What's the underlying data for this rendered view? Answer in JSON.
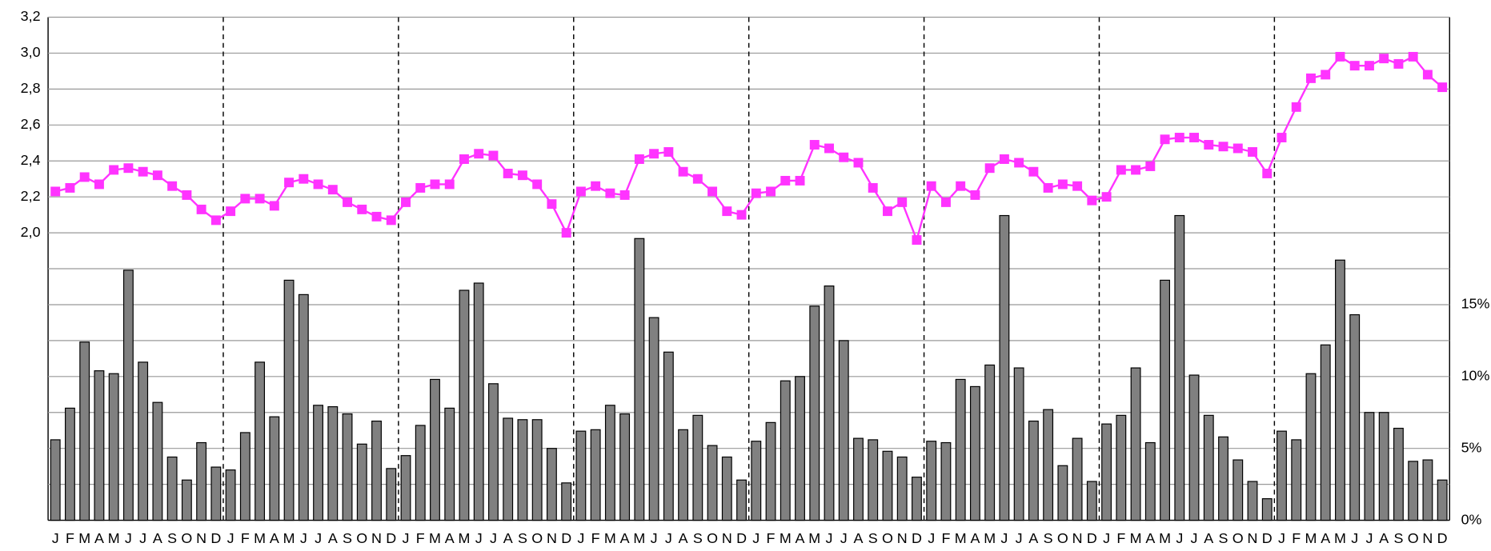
{
  "chart_data": {
    "type": "bar_line",
    "categories": [
      "J",
      "F",
      "M",
      "A",
      "M",
      "J",
      "J",
      "A",
      "S",
      "O",
      "N",
      "D",
      "J",
      "F",
      "M",
      "A",
      "M",
      "J",
      "J",
      "A",
      "S",
      "O",
      "N",
      "D",
      "J",
      "F",
      "M",
      "A",
      "M",
      "J",
      "J",
      "A",
      "S",
      "O",
      "N",
      "D",
      "J",
      "F",
      "M",
      "A",
      "M",
      "J",
      "J",
      "A",
      "S",
      "O",
      "N",
      "D",
      "J",
      "F",
      "M",
      "A",
      "M",
      "J",
      "J",
      "A",
      "S",
      "O",
      "N",
      "D",
      "J",
      "F",
      "M",
      "A",
      "M",
      "J",
      "J",
      "A",
      "S",
      "O",
      "N",
      "D",
      "J",
      "F",
      "M",
      "A",
      "M",
      "J",
      "J",
      "A",
      "S",
      "O",
      "N",
      "D",
      "J",
      "F",
      "M",
      "A",
      "M",
      "J",
      "J",
      "A",
      "S",
      "O",
      "N",
      "D"
    ],
    "series": [
      {
        "kind": "bar",
        "axis": "y2",
        "color": "#808080",
        "values": [
          5.6,
          7.8,
          12.4,
          10.4,
          10.2,
          17.4,
          11.0,
          8.2,
          4.4,
          2.8,
          5.4,
          3.7,
          3.5,
          6.1,
          11.0,
          7.2,
          16.7,
          15.7,
          8.0,
          7.9,
          7.4,
          5.3,
          6.9,
          3.6,
          4.5,
          6.6,
          9.8,
          7.8,
          16.0,
          16.5,
          9.5,
          7.1,
          7.0,
          7.0,
          5.0,
          2.6,
          6.2,
          6.3,
          8.0,
          7.4,
          19.6,
          14.1,
          11.7,
          6.3,
          7.3,
          5.2,
          4.4,
          2.8,
          5.5,
          6.8,
          9.7,
          10.0,
          14.9,
          16.3,
          12.5,
          5.7,
          5.6,
          4.8,
          4.4,
          3.0,
          5.5,
          5.4,
          9.8,
          9.3,
          10.8,
          21.2,
          10.6,
          6.9,
          7.7,
          3.8,
          5.7,
          2.7,
          6.7,
          7.3,
          10.6,
          5.4,
          16.7,
          21.2,
          10.1,
          7.3,
          5.8,
          4.2,
          2.7,
          1.5,
          6.2,
          5.6,
          10.2,
          12.2,
          18.1,
          14.3,
          7.5,
          7.5,
          6.4,
          4.1,
          4.2,
          2.8
        ]
      },
      {
        "kind": "line",
        "axis": "y",
        "color": "#ff33ff",
        "values": [
          2.23,
          2.25,
          2.31,
          2.27,
          2.35,
          2.36,
          2.34,
          2.32,
          2.26,
          2.21,
          2.13,
          2.07,
          2.12,
          2.19,
          2.19,
          2.15,
          2.28,
          2.3,
          2.27,
          2.24,
          2.17,
          2.13,
          2.09,
          2.07,
          2.17,
          2.25,
          2.27,
          2.27,
          2.41,
          2.44,
          2.43,
          2.33,
          2.32,
          2.27,
          2.16,
          2.0,
          2.23,
          2.26,
          2.22,
          2.21,
          2.41,
          2.44,
          2.45,
          2.34,
          2.3,
          2.23,
          2.12,
          2.1,
          2.22,
          2.23,
          2.29,
          2.29,
          2.49,
          2.47,
          2.42,
          2.39,
          2.25,
          2.12,
          2.17,
          1.96,
          2.26,
          2.17,
          2.26,
          2.21,
          2.36,
          2.41,
          2.39,
          2.34,
          2.25,
          2.27,
          2.26,
          2.18,
          2.2,
          2.35,
          2.35,
          2.37,
          2.52,
          2.53,
          2.53,
          2.49,
          2.48,
          2.47,
          2.45,
          2.33,
          2.53,
          2.7,
          2.86,
          2.88,
          2.98,
          2.93,
          2.93,
          2.97,
          2.94,
          2.98,
          2.88,
          2.81
        ]
      }
    ],
    "ylim": [
      0.4,
      3.2
    ],
    "yticks": [
      {
        "value": 2.0,
        "label": "2,0"
      },
      {
        "value": 2.2,
        "label": "2,2"
      },
      {
        "value": 2.4,
        "label": "2,4"
      },
      {
        "value": 2.6,
        "label": "2,6"
      },
      {
        "value": 2.8,
        "label": "2,8"
      },
      {
        "value": 3.0,
        "label": "3,0"
      },
      {
        "value": 3.2,
        "label": "3,2"
      }
    ],
    "y2lim": [
      0,
      35
    ],
    "y2ticks": [
      {
        "value": 0,
        "label": "0%"
      },
      {
        "value": 5,
        "label": "5%"
      },
      {
        "value": 10,
        "label": "10%"
      },
      {
        "value": 15,
        "label": "15%"
      }
    ],
    "y2_minor_ticks": [
      2.5,
      7.5,
      12.5,
      17.5
    ],
    "grid": true
  }
}
